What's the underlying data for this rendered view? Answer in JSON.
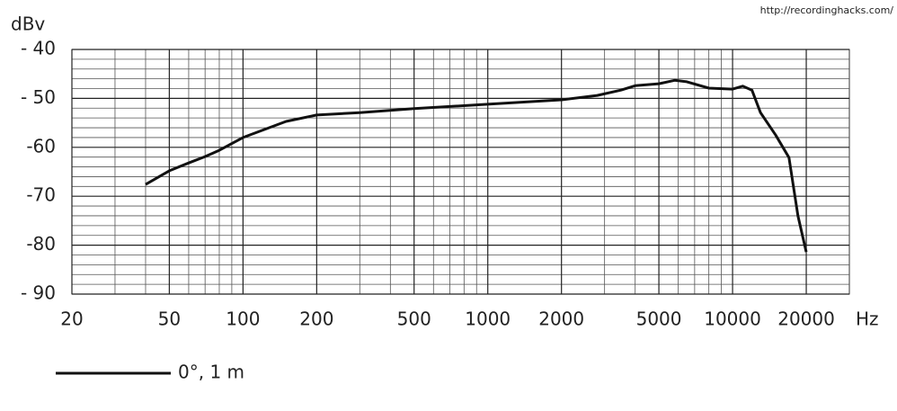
{
  "chart_data": {
    "type": "line",
    "watermark": "http://recordinghacks.com/",
    "y_unit": "dBv",
    "x_unit": "Hz",
    "xscale": "log",
    "xlim": [
      20,
      30000
    ],
    "ylim": [
      -90,
      -40
    ],
    "xticks": [
      20,
      50,
      100,
      200,
      500,
      1000,
      2000,
      5000,
      10000,
      20000
    ],
    "yticks": [
      {
        "value": -40,
        "label": "- 40"
      },
      {
        "value": -50,
        "label": "- 50"
      },
      -60,
      -70,
      -80,
      {
        "value": -90,
        "label": "- 90"
      }
    ],
    "xminor": [
      30,
      40,
      60,
      70,
      80,
      90,
      300,
      400,
      600,
      700,
      800,
      900,
      3000,
      4000,
      6000,
      7000,
      8000,
      9000
    ],
    "yminor": [
      -88,
      -86,
      -84,
      -82,
      -78,
      -76,
      -74,
      -72,
      -68,
      -66,
      -64,
      -62,
      -58,
      -56,
      -54,
      -52,
      -48,
      -46,
      -44,
      -42
    ],
    "grid": true,
    "legend": "bottom-left",
    "series": [
      {
        "name": "0°, 1 m",
        "color": "#111111",
        "x": [
          40,
          50,
          60,
          70,
          80,
          100,
          150,
          200,
          300,
          500,
          1000,
          2000,
          2800,
          3500,
          4000,
          5000,
          5800,
          6500,
          8000,
          10000,
          11000,
          12000,
          13000,
          15000,
          17000,
          18500,
          20000
        ],
        "values": [
          -67.6,
          -64.8,
          -63.2,
          -61.9,
          -60.6,
          -58.0,
          -54.7,
          -53.4,
          -52.9,
          -52.1,
          -51.2,
          -50.3,
          -49.4,
          -48.3,
          -47.4,
          -47.0,
          -46.3,
          -46.6,
          -47.9,
          -48.1,
          -47.5,
          -48.3,
          -52.9,
          -57.5,
          -62.1,
          -74.0,
          -81.4
        ]
      }
    ]
  }
}
